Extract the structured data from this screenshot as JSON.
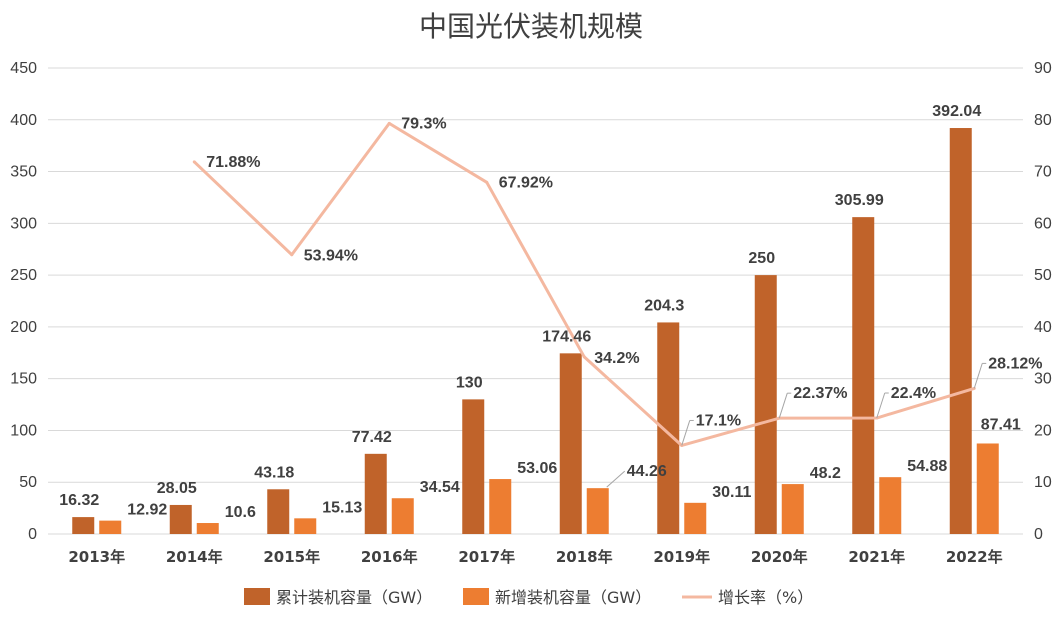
{
  "chart_data": {
    "type": "bar",
    "title": "中国光伏装机规模",
    "categories": [
      "2013年",
      "2014年",
      "2015年",
      "2016年",
      "2017年",
      "2018年",
      "2019年",
      "2020年",
      "2021年",
      "2022年"
    ],
    "series": [
      {
        "name": "累计装机容量（GW）",
        "kind": "bar",
        "axis": "left",
        "color": "#c0632a",
        "values": [
          16.32,
          28.05,
          43.18,
          77.42,
          130,
          174.46,
          204.3,
          250,
          305.99,
          392.04
        ],
        "labels": [
          "16.32",
          "28.05",
          "43.18",
          "77.42",
          "130",
          "174.46",
          "204.3",
          "250",
          "305.99",
          "392.04"
        ]
      },
      {
        "name": "新增装机容量（GW）",
        "kind": "bar",
        "axis": "left",
        "color": "#ed7d31",
        "values": [
          12.92,
          10.6,
          15.13,
          34.54,
          53.06,
          44.26,
          30.11,
          48.2,
          54.88,
          87.41
        ],
        "labels": [
          "12.92",
          "10.6",
          "15.13",
          "34.54",
          "53.06",
          "44.26",
          "30.11",
          "48.2",
          "54.88",
          "87.41"
        ]
      },
      {
        "name": "增长率（%）",
        "kind": "line",
        "axis": "right",
        "color": "#f4b8a0",
        "values": [
          null,
          71.88,
          53.94,
          79.3,
          67.92,
          34.2,
          17.1,
          22.37,
          22.4,
          28.12
        ],
        "labels": [
          "",
          "71.88%",
          "53.94%",
          "79.3%",
          "67.92%",
          "34.2%",
          "17.1%",
          "22.37%",
          "22.4%",
          "28.12%"
        ]
      }
    ],
    "yleft": {
      "min": 0,
      "max": 450,
      "step": 50
    },
    "yright": {
      "min": 0,
      "max": 90,
      "step": 10
    },
    "grid": true,
    "legend": "bottom"
  }
}
